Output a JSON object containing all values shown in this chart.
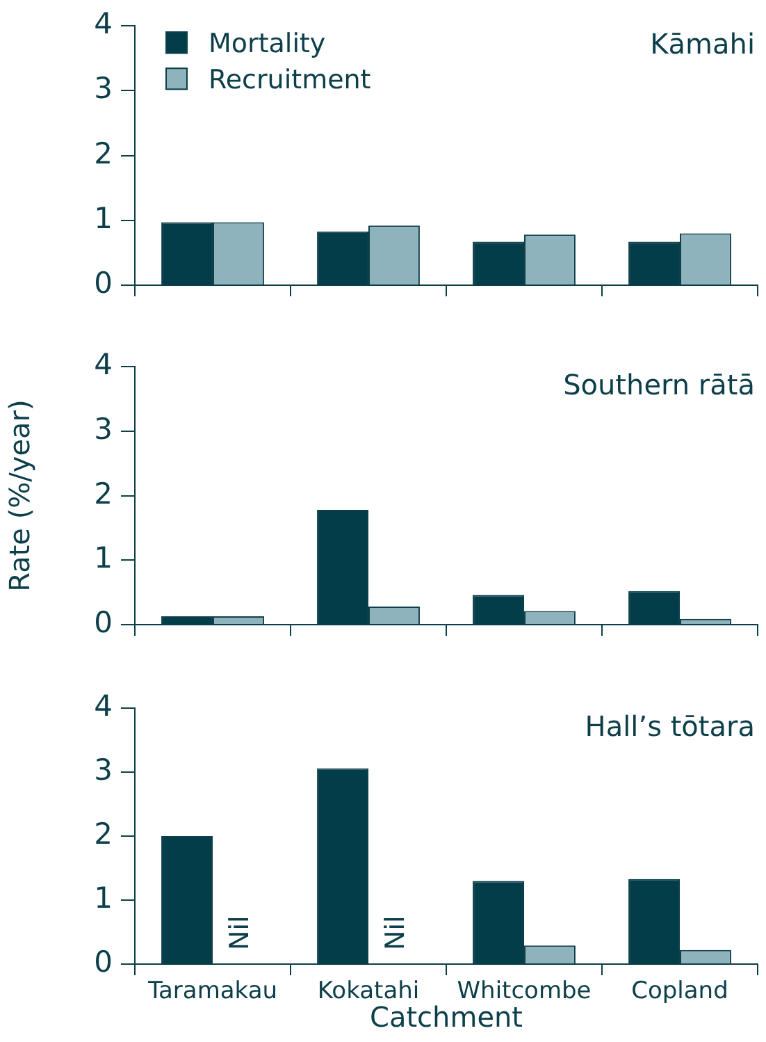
{
  "chart_data": [
    {
      "type": "bar",
      "title": "Kāmahi",
      "categories": [
        null,
        null,
        null,
        null
      ],
      "series": [
        {
          "name": "Mortality",
          "color": "#033d4a",
          "values": [
            0.97,
            0.83,
            0.67,
            0.67
          ]
        },
        {
          "name": "Recruitment",
          "color": "#8fb3bd",
          "values": [
            0.97,
            0.92,
            0.78,
            0.8
          ]
        }
      ],
      "ylim": [
        0,
        4
      ],
      "yticks": [
        0,
        1,
        2,
        3,
        4
      ],
      "legend": "top left",
      "tick_labels": "y"
    },
    {
      "type": "bar",
      "title": "Southern rātā",
      "ylabel": "Rate (%/year)",
      "categories": [
        null,
        null,
        null,
        null
      ],
      "series": [
        {
          "color": "#033d4a",
          "values": [
            0.13,
            1.78,
            0.46,
            0.52
          ]
        },
        {
          "color": "#8fb3bd",
          "values": [
            0.13,
            0.28,
            0.21,
            0.09
          ]
        }
      ],
      "ylim": [
        0,
        4
      ],
      "yticks": [
        0,
        1,
        2,
        3,
        4
      ],
      "tick_labels": "y"
    },
    {
      "type": "bar",
      "title": "Hall’s tōtara",
      "xlabel": "Catchment",
      "categories": [
        "Taramakau",
        "Kokatahi",
        "Whitcombe",
        "Copland"
      ],
      "series": [
        {
          "color": "#033d4a",
          "values": [
            2.0,
            3.06,
            1.3,
            1.33
          ]
        },
        {
          "color": "#8fb3bd",
          "values": [
            null,
            null,
            0.29,
            0.22
          ]
        }
      ],
      "ylim": [
        0,
        4
      ],
      "yticks": [
        0,
        1,
        2,
        3,
        4
      ],
      "annotations": [
        {
          "text": "Nil",
          "x": "Taramakau",
          "y": 0
        },
        {
          "text": "Nil",
          "x": "Kokatahi",
          "y": 0
        }
      ]
    }
  ]
}
